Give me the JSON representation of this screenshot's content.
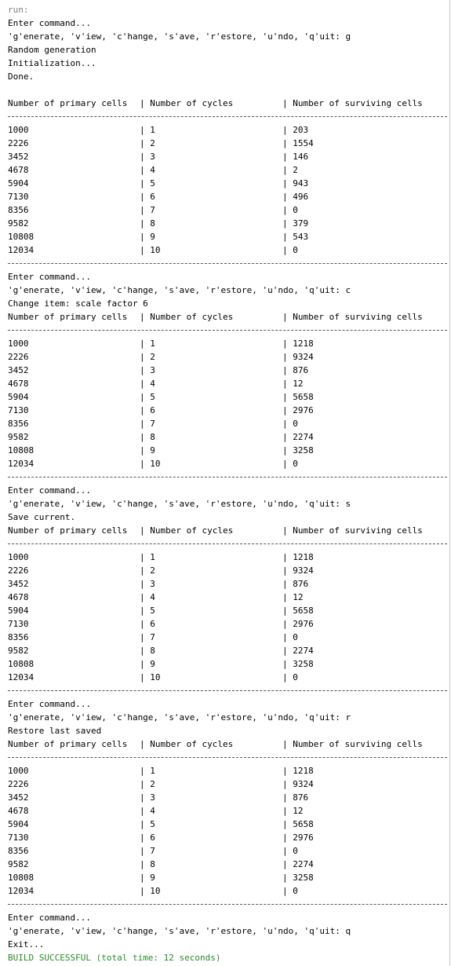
{
  "console": {
    "run_label": "run:",
    "blocks": [
      {
        "prompt": "Enter command...",
        "menu": "'g'enerate, 'v'iew, 'c'hange, 's'ave, 'r'estore, 'u'ndo, 'q'uit: g",
        "messages": [
          "Random generation",
          "Initialization...",
          "Done.",
          ""
        ],
        "table": {
          "headers": [
            "Number of primary cells",
            "| Number of cycles",
            "| Number of surviving cells"
          ],
          "rows": [
            [
              "1000",
              "| 1",
              "| 203"
            ],
            [
              "2226",
              "| 2",
              "| 1554"
            ],
            [
              "3452",
              "| 3",
              "| 146"
            ],
            [
              "4678",
              "| 4",
              "| 2"
            ],
            [
              "5904",
              "| 5",
              "| 943"
            ],
            [
              "7130",
              "| 6",
              "| 496"
            ],
            [
              "8356",
              "| 7",
              "| 0"
            ],
            [
              "9582",
              "| 8",
              "| 379"
            ],
            [
              "10808",
              "| 9",
              "| 543"
            ],
            [
              "12034",
              "| 10",
              "| 0"
            ]
          ]
        }
      },
      {
        "prompt": "Enter command...",
        "menu": "'g'enerate, 'v'iew, 'c'hange, 's'ave, 'r'estore, 'u'ndo, 'q'uit: c",
        "messages": [
          "Change item: scale factor 6"
        ],
        "table": {
          "headers": [
            "Number of primary cells",
            "| Number of cycles",
            "| Number of surviving cells"
          ],
          "rows": [
            [
              "1000",
              "| 1",
              "| 1218"
            ],
            [
              "2226",
              "| 2",
              "| 9324"
            ],
            [
              "3452",
              "| 3",
              "| 876"
            ],
            [
              "4678",
              "| 4",
              "| 12"
            ],
            [
              "5904",
              "| 5",
              "| 5658"
            ],
            [
              "7130",
              "| 6",
              "| 2976"
            ],
            [
              "8356",
              "| 7",
              "| 0"
            ],
            [
              "9582",
              "| 8",
              "| 2274"
            ],
            [
              "10808",
              "| 9",
              "| 3258"
            ],
            [
              "12034",
              "| 10",
              "| 0"
            ]
          ]
        }
      },
      {
        "prompt": "Enter command...",
        "menu": "'g'enerate, 'v'iew, 'c'hange, 's'ave, 'r'estore, 'u'ndo, 'q'uit: s",
        "messages": [
          "Save current."
        ],
        "table": {
          "headers": [
            "Number of primary cells",
            "| Number of cycles",
            "| Number of surviving cells"
          ],
          "rows": [
            [
              "1000",
              "| 1",
              "| 1218"
            ],
            [
              "2226",
              "| 2",
              "| 9324"
            ],
            [
              "3452",
              "| 3",
              "| 876"
            ],
            [
              "4678",
              "| 4",
              "| 12"
            ],
            [
              "5904",
              "| 5",
              "| 5658"
            ],
            [
              "7130",
              "| 6",
              "| 2976"
            ],
            [
              "8356",
              "| 7",
              "| 0"
            ],
            [
              "9582",
              "| 8",
              "| 2274"
            ],
            [
              "10808",
              "| 9",
              "| 3258"
            ],
            [
              "12034",
              "| 10",
              "| 0"
            ]
          ]
        }
      },
      {
        "prompt": "Enter command...",
        "menu": "'g'enerate, 'v'iew, 'c'hange, 's'ave, 'r'estore, 'u'ndo, 'q'uit: r",
        "messages": [
          "Restore last saved"
        ],
        "table": {
          "headers": [
            "Number of primary cells",
            "| Number of cycles",
            "| Number of surviving cells"
          ],
          "rows": [
            [
              "1000",
              "| 1",
              "| 1218"
            ],
            [
              "2226",
              "| 2",
              "| 9324"
            ],
            [
              "3452",
              "| 3",
              "| 876"
            ],
            [
              "4678",
              "| 4",
              "| 12"
            ],
            [
              "5904",
              "| 5",
              "| 5658"
            ],
            [
              "7130",
              "| 6",
              "| 2976"
            ],
            [
              "8356",
              "| 7",
              "| 0"
            ],
            [
              "9582",
              "| 8",
              "| 2274"
            ],
            [
              "10808",
              "| 9",
              "| 3258"
            ],
            [
              "12034",
              "| 10",
              "| 0"
            ]
          ]
        }
      }
    ],
    "final_prompt": "Enter command...",
    "final_menu": "'g'enerate, 'v'iew, 'c'hange, 's'ave, 'r'estore, 'u'ndo, 'q'uit: q",
    "exit_message": "Exit...",
    "build_status": "BUILD SUCCESSFUL (total time: 12 seconds)"
  },
  "colors": {
    "background": "#ffffff",
    "text": "#000000",
    "muted": "#808080",
    "success": "#2a8a2a"
  }
}
